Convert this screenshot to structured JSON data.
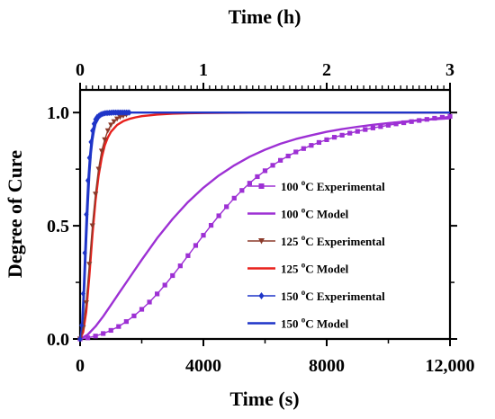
{
  "chart_data": {
    "type": "line",
    "title": "",
    "xlabel": "Time (s)",
    "ylabel": "Degree of Cure",
    "top_xlabel": "Time (h)",
    "xlim": [
      0,
      12000
    ],
    "ylim": [
      0,
      1.1
    ],
    "top_xlim": [
      0,
      3
    ],
    "x_ticks": [
      0,
      4000,
      8000,
      12000
    ],
    "x_tick_labels": [
      "0",
      "4000",
      "8000",
      "12,000"
    ],
    "y_ticks": [
      0,
      0.5,
      1
    ],
    "y_tick_labels": [
      "0.0",
      "0.5",
      "1.0"
    ],
    "top_x_ticks": [
      0,
      1,
      2,
      3
    ],
    "top_x_tick_labels": [
      "0",
      "1",
      "2",
      "3"
    ],
    "grid": false,
    "legend_position": "lower-right",
    "series": [
      {
        "name": "100 oC Experimental",
        "legend_parts": [
          "100 ",
          "o",
          "C Experimental"
        ],
        "kind": "experimental",
        "color": "#9d30d4",
        "marker": "square",
        "x": [
          0,
          250,
          500,
          750,
          1000,
          1250,
          1500,
          1750,
          2000,
          2250,
          2500,
          2750,
          3000,
          3250,
          3500,
          3750,
          4000,
          4250,
          4500,
          4750,
          5000,
          5250,
          5500,
          5750,
          6000,
          6250,
          6500,
          6750,
          7000,
          7250,
          7500,
          7750,
          8000,
          8250,
          8500,
          8750,
          9000,
          9250,
          9500,
          9750,
          10000,
          10250,
          10500,
          10750,
          11000,
          11250,
          11500,
          11750,
          12000
        ],
        "y": [
          0.0,
          0.005,
          0.013,
          0.024,
          0.038,
          0.055,
          0.077,
          0.102,
          0.131,
          0.163,
          0.199,
          0.238,
          0.28,
          0.323,
          0.368,
          0.413,
          0.458,
          0.502,
          0.544,
          0.584,
          0.622,
          0.656,
          0.688,
          0.717,
          0.743,
          0.767,
          0.789,
          0.808,
          0.826,
          0.841,
          0.855,
          0.868,
          0.88,
          0.891,
          0.9,
          0.909,
          0.917,
          0.925,
          0.932,
          0.938,
          0.944,
          0.95,
          0.955,
          0.96,
          0.965,
          0.97,
          0.975,
          0.979,
          0.983
        ]
      },
      {
        "name": "100 oC Model",
        "legend_parts": [
          "100 ",
          "o",
          "C Model"
        ],
        "kind": "model",
        "color": "#9d30d4",
        "x": [
          0,
          250,
          500,
          750,
          1000,
          1250,
          1500,
          1750,
          2000,
          2500,
          3000,
          3500,
          4000,
          4500,
          5000,
          5500,
          6000,
          6500,
          7000,
          7500,
          8000,
          8500,
          9000,
          9500,
          10000,
          10500,
          11000,
          11500,
          12000
        ],
        "y": [
          0.0,
          0.02,
          0.055,
          0.1,
          0.15,
          0.2,
          0.25,
          0.3,
          0.35,
          0.445,
          0.53,
          0.605,
          0.668,
          0.722,
          0.767,
          0.805,
          0.836,
          0.862,
          0.883,
          0.9,
          0.915,
          0.927,
          0.937,
          0.946,
          0.953,
          0.96,
          0.966,
          0.971,
          0.975
        ]
      },
      {
        "name": "125 oC Experimental",
        "legend_parts": [
          "125 ",
          "o",
          "C Experimental"
        ],
        "kind": "experimental",
        "color": "#8b3a2a",
        "marker": "triangle-down",
        "x": [
          0,
          100,
          200,
          300,
          400,
          500,
          600,
          700,
          800,
          900,
          1000,
          1100,
          1200,
          1300,
          1400,
          1500
        ],
        "y": [
          0.0,
          0.05,
          0.16,
          0.33,
          0.5,
          0.64,
          0.75,
          0.83,
          0.88,
          0.92,
          0.945,
          0.96,
          0.972,
          0.98,
          0.985,
          0.99
        ]
      },
      {
        "name": "125 oC Model",
        "legend_parts": [
          "125 ",
          "o",
          "C Model"
        ],
        "kind": "model",
        "color": "#e8201c",
        "x": [
          0,
          100,
          200,
          300,
          400,
          500,
          600,
          700,
          800,
          900,
          1000,
          1200,
          1400,
          1600,
          1800,
          2000,
          2500,
          3000,
          3500,
          4000,
          5000,
          6000,
          7000,
          8000,
          9000,
          10000,
          11000,
          12000
        ],
        "y": [
          0.0,
          0.03,
          0.12,
          0.28,
          0.46,
          0.61,
          0.72,
          0.8,
          0.855,
          0.89,
          0.915,
          0.945,
          0.962,
          0.972,
          0.979,
          0.984,
          0.991,
          0.995,
          0.997,
          0.998,
          0.999,
          1.0,
          1.0,
          1.0,
          1.0,
          1.0,
          1.0,
          1.0
        ]
      },
      {
        "name": "150 oC Experimental",
        "legend_parts": [
          "150 ",
          "o",
          "C Experimental"
        ],
        "kind": "experimental",
        "color": "#1f35c8",
        "marker": "diamond",
        "x": [
          0,
          50,
          100,
          150,
          200,
          250,
          300,
          350,
          400,
          450,
          500,
          550,
          600,
          650,
          700,
          750,
          800,
          850,
          900,
          950,
          1000,
          1050,
          1100,
          1150,
          1200,
          1250,
          1300,
          1350,
          1400,
          1450,
          1500,
          1550,
          1600
        ],
        "y": [
          0.0,
          0.06,
          0.2,
          0.38,
          0.55,
          0.7,
          0.8,
          0.87,
          0.92,
          0.95,
          0.97,
          0.98,
          0.985,
          0.99,
          0.993,
          0.995,
          0.997,
          0.998,
          0.998,
          0.999,
          0.999,
          1.0,
          1.0,
          1.0,
          1.0,
          1.0,
          1.0,
          1.0,
          1.0,
          1.0,
          1.0,
          1.0,
          1.0
        ]
      },
      {
        "name": "150 oC Model",
        "legend_parts": [
          "150 ",
          "o",
          "C Model"
        ],
        "kind": "model",
        "color": "#1f35c8",
        "x": [
          0,
          50,
          100,
          150,
          200,
          250,
          300,
          350,
          400,
          450,
          500,
          600,
          700,
          800,
          900,
          1000,
          1200,
          1500,
          2000,
          3000,
          4000,
          6000,
          8000,
          10000,
          12000
        ],
        "y": [
          0.0,
          0.03,
          0.12,
          0.27,
          0.44,
          0.6,
          0.73,
          0.82,
          0.88,
          0.92,
          0.95,
          0.975,
          0.987,
          0.993,
          0.996,
          0.998,
          0.999,
          1.0,
          1.0,
          1.0,
          1.0,
          1.0,
          1.0,
          1.0,
          1.0
        ]
      }
    ]
  }
}
